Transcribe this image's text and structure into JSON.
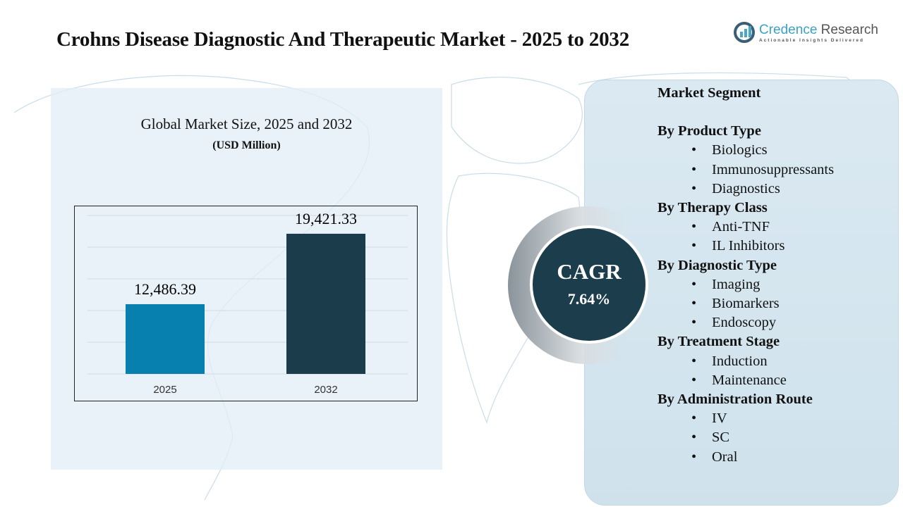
{
  "title": "Crohns Disease Diagnostic And Therapeutic Market - 2025 to 2032",
  "logo": {
    "name_a": "Credence",
    "name_b": " Research",
    "tagline": "Actionable Insights Delivered"
  },
  "chart_data": {
    "type": "bar",
    "title": "Global Market Size, 2025 and 2032",
    "subtitle": "(USD Million)",
    "categories": [
      "2025",
      "2032"
    ],
    "values": [
      12486.39,
      19421.33
    ],
    "value_labels": [
      "12,486.39",
      "19,421.33"
    ],
    "colors": [
      "#0780b0",
      "#1b3d4b"
    ],
    "ylim": [
      5620,
      21150
    ],
    "grid": true,
    "y_axis_visible": false
  },
  "cagr": {
    "label": "CAGR",
    "value": "7.64%"
  },
  "segments": {
    "heading": "Market Segment",
    "groups": [
      {
        "title": "By Product Type",
        "items": [
          "Biologics",
          "Immunosuppressants",
          "Diagnostics"
        ]
      },
      {
        "title": "By Therapy Class",
        "items": [
          "Anti-TNF",
          "IL Inhibitors"
        ]
      },
      {
        "title": "By Diagnostic Type",
        "items": [
          "Imaging",
          "Biomarkers",
          "Endoscopy"
        ]
      },
      {
        "title": "By Treatment Stage",
        "items": [
          "Induction",
          "Maintenance"
        ]
      },
      {
        "title": "By Administration Route",
        "items": [
          "IV",
          "SC",
          "Oral"
        ]
      }
    ]
  }
}
